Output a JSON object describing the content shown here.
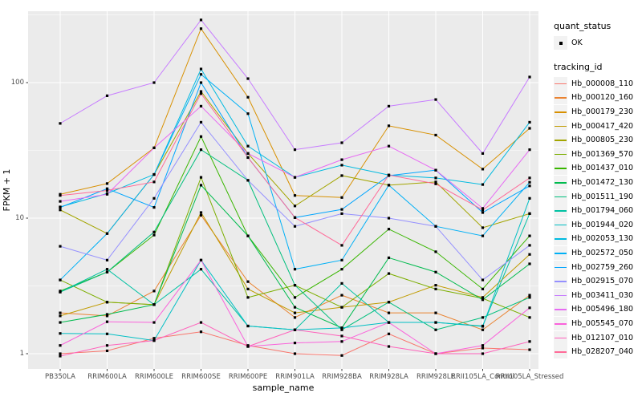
{
  "chart_data": {
    "type": "line",
    "title": "",
    "xlabel": "sample_name",
    "ylabel": "FPKM + 1",
    "y_scale": "log10",
    "y_ticks": [
      1,
      10,
      100
    ],
    "y_minor_ticks": [
      3.162,
      31.62,
      316.2
    ],
    "ylim": [
      0.78,
      340
    ],
    "panel_bg": "#ebebeb",
    "grid_color": "#ffffff",
    "point_shape": "small-black-square",
    "legend_position": "right",
    "categories": [
      "PB350LA",
      "RRIM600LA",
      "RRIM600LE",
      "RRIM600SE",
      "RRIM600PE",
      "RRIM901LA",
      "RRIM928BA",
      "RRIM928LA",
      "RRIM928LE",
      "RRII105LA_Control",
      "RRII105LA_Stressed"
    ],
    "series": [
      {
        "tracking_id": "Hb_000008_110",
        "quant_status": "OK",
        "color": "#F8766D",
        "values": [
          1.0,
          1.05,
          1.3,
          1.45,
          1.15,
          1.0,
          0.97,
          1.4,
          1.0,
          1.1,
          1.07
        ]
      },
      {
        "tracking_id": "Hb_000120_160",
        "quant_status": "OK",
        "color": "#EA8331",
        "values": [
          2.0,
          1.9,
          2.9,
          10.5,
          3.4,
          1.85,
          2.7,
          2.0,
          2.0,
          1.5,
          2.7
        ]
      },
      {
        "tracking_id": "Hb_000179_230",
        "quant_status": "OK",
        "color": "#D89000",
        "values": [
          15.0,
          18.0,
          33.0,
          250,
          78.0,
          14.7,
          14.2,
          48.0,
          41.0,
          23.0,
          46.0
        ]
      },
      {
        "tracking_id": "Hb_000417_420",
        "quant_status": "OK",
        "color": "#C09B00",
        "values": [
          1.9,
          2.4,
          2.3,
          11.0,
          3.0,
          2.0,
          2.2,
          2.4,
          3.2,
          2.6,
          5.4
        ]
      },
      {
        "tracking_id": "Hb_000805_230",
        "quant_status": "OK",
        "color": "#A3A500",
        "values": [
          11.5,
          7.7,
          21.0,
          86.0,
          30.0,
          12.3,
          20.6,
          17.5,
          18.5,
          8.5,
          10.8
        ]
      },
      {
        "tracking_id": "Hb_001369_570",
        "quant_status": "OK",
        "color": "#7CAE00",
        "values": [
          3.5,
          2.4,
          2.3,
          20.0,
          2.6,
          3.2,
          2.2,
          3.9,
          3.0,
          2.56,
          1.85
        ]
      },
      {
        "tracking_id": "Hb_001437_010",
        "quant_status": "OK",
        "color": "#39B600",
        "values": [
          2.9,
          4.0,
          7.5,
          40.0,
          7.4,
          2.6,
          4.2,
          8.3,
          5.65,
          3.0,
          7.4
        ]
      },
      {
        "tracking_id": "Hb_001472_130",
        "quant_status": "OK",
        "color": "#00BB4E",
        "values": [
          1.7,
          1.95,
          2.3,
          17.5,
          7.4,
          2.2,
          1.55,
          5.1,
          4.0,
          2.5,
          4.6
        ]
      },
      {
        "tracking_id": "Hb_001511_190",
        "quant_status": "OK",
        "color": "#00BF7D",
        "values": [
          2.85,
          4.0,
          7.9,
          32.0,
          19.0,
          3.2,
          1.5,
          2.4,
          1.5,
          1.85,
          2.6
        ]
      },
      {
        "tracking_id": "Hb_001794_060",
        "quant_status": "OK",
        "color": "#00C1A3",
        "values": [
          2.85,
          4.2,
          2.3,
          4.2,
          1.6,
          1.5,
          3.3,
          1.7,
          1.7,
          1.6,
          10.8
        ]
      },
      {
        "tracking_id": "Hb_001944_020",
        "quant_status": "OK",
        "color": "#00BFC4",
        "values": [
          1.41,
          1.4,
          1.25,
          4.9,
          1.6,
          1.5,
          1.55,
          1.7,
          1.7,
          1.59,
          14.0
        ]
      },
      {
        "tracking_id": "Hb_002053_130",
        "quant_status": "OK",
        "color": "#00BAE0",
        "values": [
          12.1,
          15.2,
          21.0,
          126,
          34.0,
          20.0,
          24.6,
          20.8,
          19.8,
          17.7,
          51.0
        ]
      },
      {
        "tracking_id": "Hb_002572_050",
        "quant_status": "OK",
        "color": "#00B0F6",
        "values": [
          3.5,
          7.7,
          21.0,
          115,
          59.0,
          4.2,
          4.9,
          17.5,
          8.7,
          7.4,
          18.4
        ]
      },
      {
        "tracking_id": "Hb_002759_260",
        "quant_status": "OK",
        "color": "#00A5FF",
        "values": [
          12.0,
          16.5,
          12.0,
          100,
          28.0,
          10.1,
          11.6,
          20.6,
          22.6,
          11.0,
          17.3
        ]
      },
      {
        "tracking_id": "Hb_002915_070",
        "quant_status": "OK",
        "color": "#9590FF",
        "values": [
          6.2,
          4.9,
          14.0,
          51.0,
          19.0,
          8.7,
          10.8,
          10.0,
          8.7,
          3.5,
          6.3
        ]
      },
      {
        "tracking_id": "Hb_003411_030",
        "quant_status": "OK",
        "color": "#C77CFF",
        "values": [
          50.0,
          80.0,
          100,
          290,
          107,
          32.0,
          36.0,
          67.0,
          75.0,
          30.0,
          110
        ]
      },
      {
        "tracking_id": "Hb_005496_180",
        "quant_status": "OK",
        "color": "#E76BF3",
        "values": [
          13.3,
          15.0,
          33.0,
          67.0,
          30.0,
          20.0,
          27.0,
          34.0,
          22.6,
          11.8,
          32.0
        ]
      },
      {
        "tracking_id": "Hb_005545_070",
        "quant_status": "OK",
        "color": "#FA62DB",
        "values": [
          1.15,
          1.72,
          1.7,
          4.9,
          1.13,
          1.2,
          1.23,
          1.7,
          1.0,
          1.15,
          2.18
        ]
      },
      {
        "tracking_id": "Hb_012107_010",
        "quant_status": "OK",
        "color": "#FF62BC",
        "values": [
          0.96,
          1.15,
          1.25,
          1.7,
          1.13,
          1.5,
          1.35,
          1.13,
          1.0,
          1.0,
          1.23
        ]
      },
      {
        "tracking_id": "Hb_028207_040",
        "quant_status": "OK",
        "color": "#FF6A98",
        "values": [
          14.7,
          16.0,
          18.5,
          83.0,
          28.0,
          10.1,
          6.3,
          20.8,
          17.9,
          11.5,
          19.8
        ]
      }
    ]
  },
  "axes": {
    "y_tick_labels": [
      "1",
      "10",
      "100"
    ],
    "y_axis_title": "FPKM + 1",
    "x_axis_title": "sample_name"
  },
  "legend": {
    "quant_title": "quant_status",
    "quant_items": [
      {
        "label": "OK",
        "marker": "black-point"
      }
    ],
    "tracking_title": "tracking_id"
  }
}
